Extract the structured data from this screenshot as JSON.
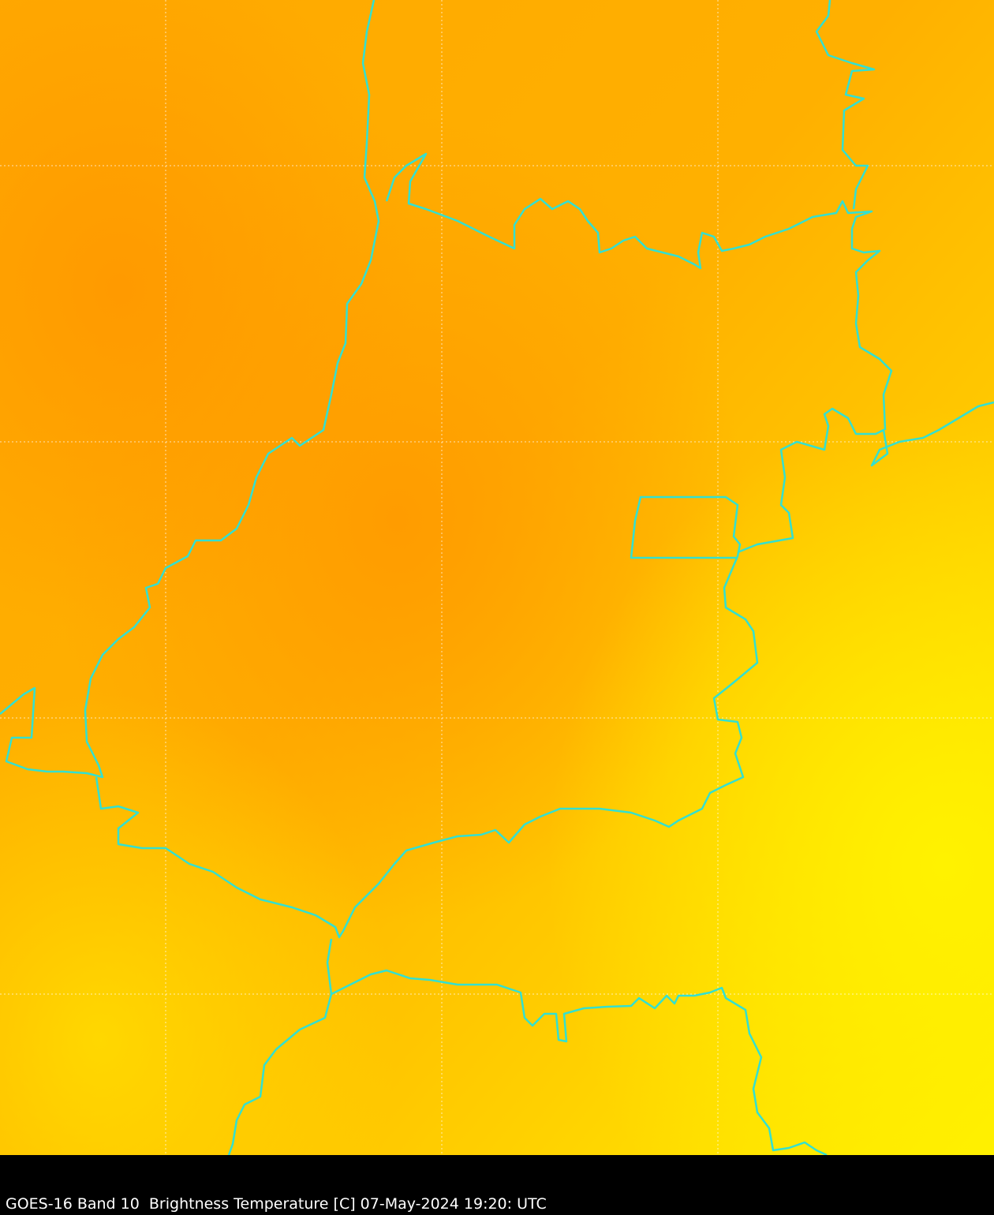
{
  "caption": "GOES-16 Band 10  Brightness Temperature [C] 07-May-2024 19:20: UTC",
  "colors": {
    "warm_orange": "#ffa000",
    "mid_orange": "#ffbb00",
    "yellow": "#ffee00",
    "border": "#33e0d0",
    "grid": "#ffffff",
    "background": "#000000"
  }
}
